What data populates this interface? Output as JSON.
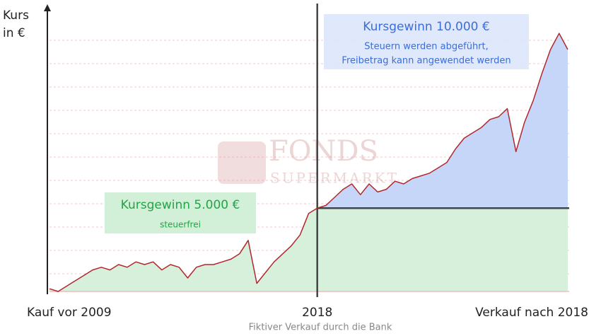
{
  "chart_data": {
    "type": "line",
    "y_label_lines": [
      "Kurs",
      "in €"
    ],
    "categories": [
      "Kauf vor 2009",
      null,
      null,
      null,
      null,
      null,
      null,
      null,
      null,
      null,
      null,
      null,
      null,
      null,
      null,
      null,
      null,
      null,
      null,
      null,
      null,
      null,
      null,
      null,
      null,
      null,
      null,
      null,
      null,
      null,
      null,
      "2018",
      null,
      null,
      null,
      null,
      null,
      null,
      null,
      null,
      null,
      null,
      null,
      null,
      null,
      null,
      null,
      null,
      null,
      null,
      null,
      null,
      null,
      null,
      null,
      null,
      null,
      null,
      null,
      null,
      "Verkauf nach 2018"
    ],
    "values": [
      1,
      0,
      2,
      4,
      6,
      8,
      9,
      8,
      10,
      9,
      11,
      10,
      11,
      8,
      10,
      9,
      5,
      9,
      10,
      10,
      11,
      12,
      14,
      19,
      3,
      7,
      11,
      14,
      17,
      21,
      29,
      31,
      32,
      35,
      38,
      40,
      36,
      40,
      37,
      38,
      41,
      40,
      42,
      43,
      44,
      46,
      48,
      53,
      57,
      59,
      61,
      64,
      65,
      68,
      52,
      63,
      71,
      81,
      90,
      96,
      90
    ],
    "color": "#b0282c",
    "ylim": [
      0,
      100
    ],
    "annotations": {
      "left_title": "Kursgewinn 5.000 €",
      "left_note": "steuerfrei",
      "right_title": "Kursgewinn 10.000 €",
      "right_note_1": "Steuern werden abgeführt,",
      "right_note_2": "Freibetrag kann angewendet werden"
    },
    "caption": "Fiktiver Verkauf durch die Bank",
    "watermark": [
      "FONDS",
      "SUPERMARKT"
    ]
  }
}
